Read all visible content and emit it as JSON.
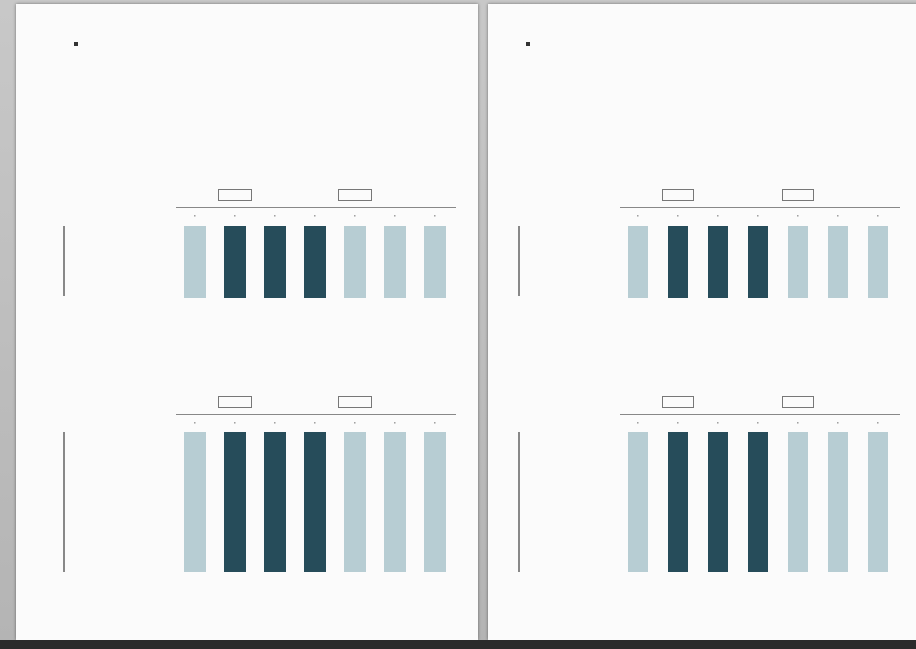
{
  "viewer": {
    "background": "#bdbdbd"
  },
  "colors": {
    "dark": "#264c5a",
    "light": "#b7cdd3",
    "pale": "#a9c3ca"
  },
  "pages": [
    {
      "header_title": "",
      "header_sub": "",
      "section1": "",
      "q1": "",
      "chart1": {
        "col_heads": [
          "",
          "",
          "",
          "",
          "",
          "",
          ""
        ],
        "tones": [
          "light",
          "dark",
          "dark",
          "dark",
          "light",
          "light",
          "light"
        ],
        "rows": [
          "",
          "",
          "",
          ""
        ],
        "cells": [
          [
            "",
            "",
            "",
            ""
          ],
          [
            "",
            "",
            "",
            ""
          ],
          [
            "",
            "",
            "",
            ""
          ],
          [
            "",
            "",
            "",
            ""
          ],
          [
            "",
            "",
            "",
            ""
          ],
          [
            "",
            "",
            "",
            ""
          ],
          [
            "",
            "",
            "",
            ""
          ]
        ]
      },
      "section2": "",
      "q2": "",
      "chart2": {
        "col_heads": [
          "",
          "",
          "",
          "",
          "",
          "",
          ""
        ],
        "tones": [
          "light",
          "dark",
          "dark",
          "dark",
          "light",
          "light",
          "light"
        ],
        "rows": [
          "",
          "",
          "",
          "",
          "",
          "",
          "",
          "",
          ""
        ],
        "cells": [
          [
            "",
            "",
            "",
            "",
            "",
            "",
            "",
            "",
            ""
          ],
          [
            "",
            "",
            "",
            "",
            "",
            "",
            "",
            "",
            ""
          ],
          [
            "",
            "",
            "",
            "",
            "",
            "",
            "",
            "",
            ""
          ],
          [
            "",
            "",
            "",
            "",
            "",
            "",
            "",
            "",
            ""
          ],
          [
            "",
            "",
            "",
            "",
            "",
            "",
            "",
            "",
            ""
          ],
          [
            "",
            "",
            "",
            "",
            "",
            "",
            "",
            "",
            ""
          ],
          [
            "",
            "",
            "",
            "",
            "",
            "",
            "",
            "",
            ""
          ]
        ]
      },
      "footer": ""
    },
    {
      "header_title": "",
      "header_sub": "",
      "q1": "",
      "chart1": {
        "col_heads": [
          "",
          "",
          "",
          "",
          "",
          "",
          ""
        ],
        "tones": [
          "light",
          "dark",
          "dark",
          "dark",
          "light",
          "light",
          "light"
        ],
        "rows": [
          "",
          "",
          "",
          ""
        ],
        "cells": [
          [
            "",
            "",
            "",
            ""
          ],
          [
            "",
            "",
            "",
            ""
          ],
          [
            "",
            "",
            "",
            ""
          ],
          [
            "",
            "",
            "",
            ""
          ],
          [
            "",
            "",
            "",
            ""
          ],
          [
            "",
            "",
            "",
            ""
          ],
          [
            "",
            "",
            "",
            ""
          ]
        ]
      },
      "q2": "",
      "chart2": {
        "col_heads": [
          "",
          "",
          "",
          "",
          "",
          "",
          ""
        ],
        "tones": [
          "light",
          "dark",
          "dark",
          "dark",
          "light",
          "light",
          "light"
        ],
        "rows": [
          "",
          "",
          "",
          "",
          "",
          "",
          "",
          "",
          ""
        ],
        "cells": [
          [
            "",
            "",
            "",
            "",
            "",
            "",
            "",
            "",
            ""
          ],
          [
            "",
            "",
            "",
            "",
            "",
            "",
            "",
            "",
            ""
          ],
          [
            "",
            "",
            "",
            "",
            "",
            "",
            "",
            "",
            ""
          ],
          [
            "",
            "",
            "",
            "",
            "",
            "",
            "",
            "",
            ""
          ],
          [
            "",
            "",
            "",
            "",
            "",
            "",
            "",
            "",
            ""
          ],
          [
            "",
            "",
            "",
            "",
            "",
            "",
            "",
            "",
            ""
          ],
          [
            "",
            "",
            "",
            "",
            "",
            "",
            "",
            "",
            ""
          ]
        ]
      },
      "footer": ""
    }
  ]
}
